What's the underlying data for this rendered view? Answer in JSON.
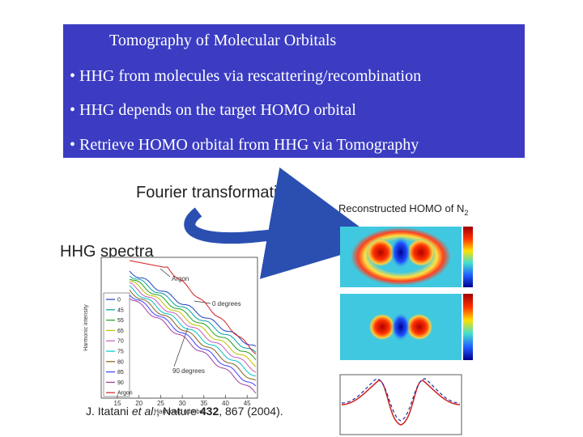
{
  "slide": {
    "title": "Tomography of Molecular Orbitals",
    "bullets": [
      "• HHG from molecules via rescattering/recombination",
      "• HHG depends on the target HOMO orbital",
      "• Retrieve HOMO orbital from HHG via Tomography"
    ]
  },
  "figure": {
    "fourier_label": "Fourier transformation",
    "hhg_label": "HHG spectra",
    "homo_title": "Reconstructed HOMO of N",
    "homo_subscript": "2",
    "spectra": {
      "legend": [
        "0",
        "45",
        "55",
        "65",
        "70",
        "75",
        "80",
        "85",
        "90",
        "Argon"
      ],
      "annotations": [
        "Argon",
        "0 degrees",
        "90 degrees"
      ],
      "x_label": "Harmonic number",
      "y_label": "Harmonic intensity",
      "xticks": [
        "15",
        "20",
        "25",
        "30",
        "35",
        "40",
        "45"
      ]
    },
    "citation": {
      "author": "J. Itatani ",
      "etal": "et al.",
      "journal": ", Nature ",
      "volume": "432",
      "rest": ", 867 (2004)."
    }
  }
}
